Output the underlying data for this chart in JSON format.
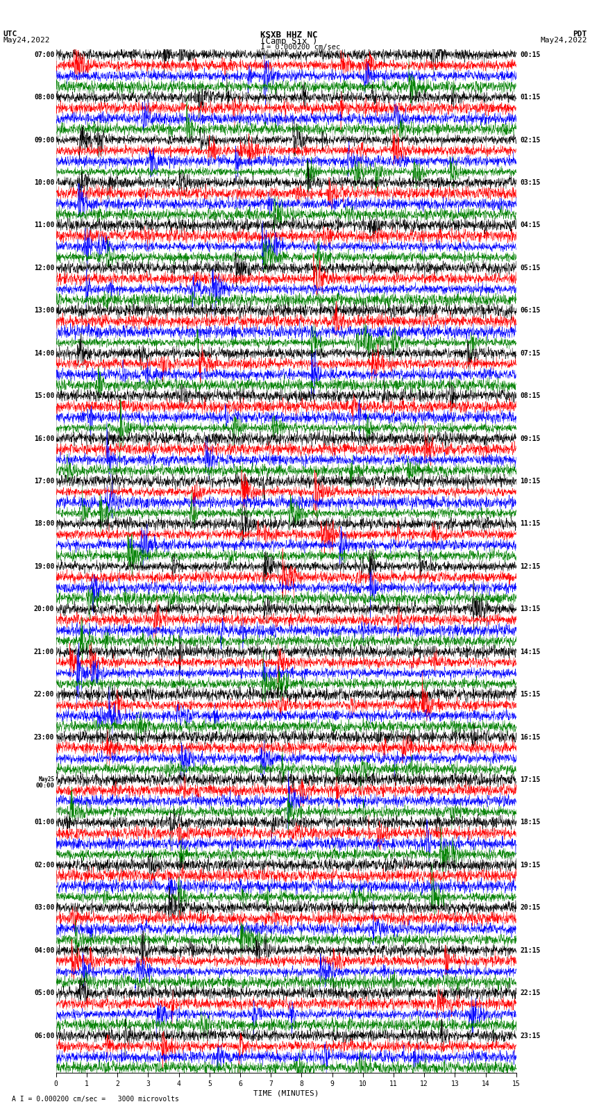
{
  "title_line1": "KSXB HHZ NC",
  "title_line2": "(Camp Six )",
  "scale_label": "I = 0.000200 cm/sec",
  "bottom_label": "A I = 0.000200 cm/sec =   3000 microvolts",
  "xlabel": "TIME (MINUTES)",
  "left_header_line1": "UTC",
  "left_header_line2": "May24,2022",
  "right_header_line1": "PDT",
  "right_header_line2": "May24,2022",
  "utc_hour_labels": [
    "07:00",
    "08:00",
    "09:00",
    "10:00",
    "11:00",
    "12:00",
    "13:00",
    "14:00",
    "15:00",
    "16:00",
    "17:00",
    "18:00",
    "19:00",
    "20:00",
    "21:00",
    "22:00",
    "23:00",
    "May25\n00:00",
    "01:00",
    "02:00",
    "03:00",
    "04:00",
    "05:00",
    "06:00"
  ],
  "pdt_hour_labels": [
    "00:15",
    "01:15",
    "02:15",
    "03:15",
    "04:15",
    "05:15",
    "06:15",
    "07:15",
    "08:15",
    "09:15",
    "10:15",
    "11:15",
    "12:15",
    "13:15",
    "14:15",
    "15:15",
    "16:15",
    "17:15",
    "18:15",
    "19:15",
    "20:15",
    "21:15",
    "22:15",
    "23:15"
  ],
  "n_hours": 24,
  "rows_per_hour": 4,
  "n_cols_minutes": 15,
  "colors_cycle": [
    "black",
    "red",
    "blue",
    "green"
  ],
  "background_color": "white",
  "grid_color": "#aaaaaa",
  "grid_linewidth": 0.5,
  "trace_linewidth": 0.35,
  "fig_width": 8.5,
  "fig_height": 16.13,
  "dpi": 100
}
